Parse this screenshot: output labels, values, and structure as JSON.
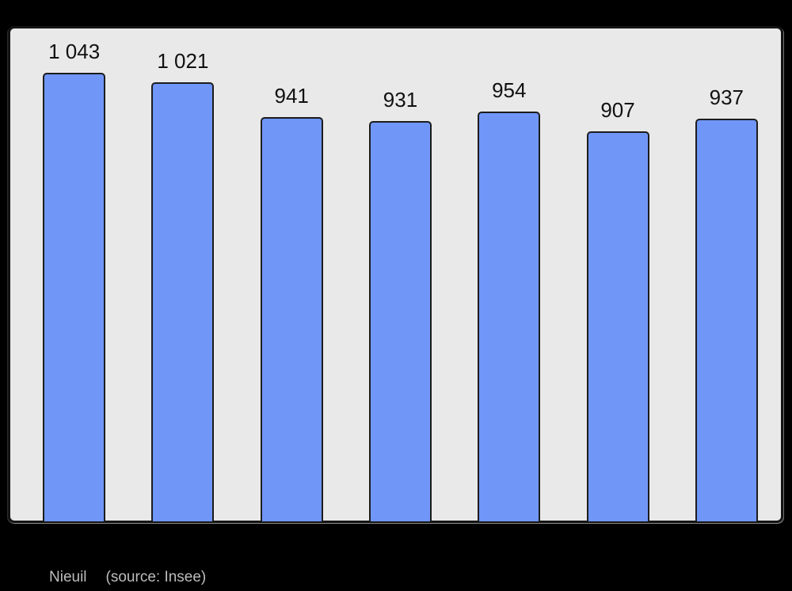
{
  "chart_data": {
    "type": "bar",
    "categories": [
      "",
      "",
      "",
      "",
      "",
      "",
      ""
    ],
    "values": [
      1043,
      1021,
      941,
      931,
      954,
      907,
      937
    ],
    "value_labels": [
      "1 043",
      "1 021",
      "941",
      "931",
      "954",
      "907",
      "937"
    ],
    "title": "",
    "xlabel": "",
    "ylabel": "",
    "ylim": [
      0,
      1145
    ],
    "grid": false,
    "legend": false,
    "bar_color": "#7096f8",
    "bar_border_color": "#1c1c1c",
    "plot_background": "#e9e9e9",
    "page_background": "#000000",
    "label_color": "#111111"
  },
  "caption": {
    "commune": "Nieuil",
    "source": "(source: Insee)",
    "text_color": "#bdbdbd"
  }
}
